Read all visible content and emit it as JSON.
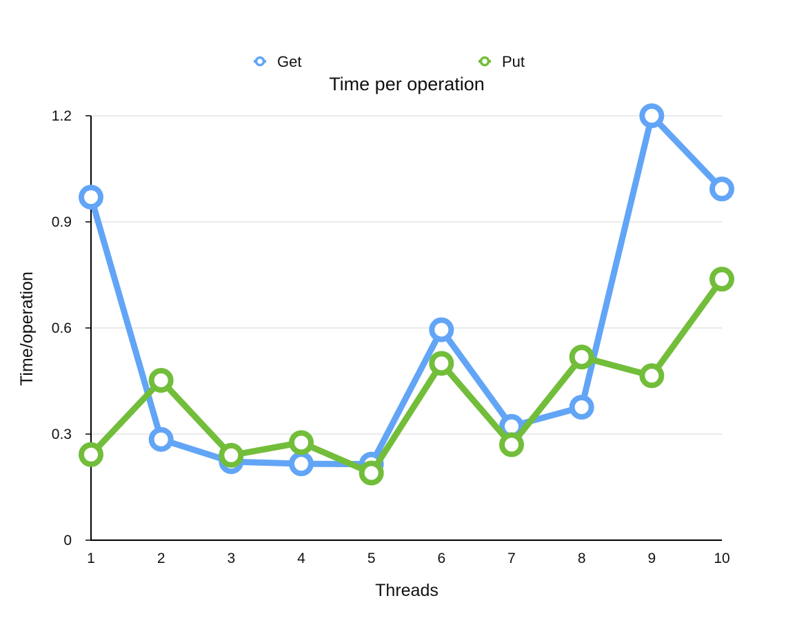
{
  "chart_data": {
    "type": "line",
    "title": "Time per operation",
    "xlabel": "Threads",
    "ylabel": "Time/operation",
    "x": [
      "1",
      "2",
      "3",
      "4",
      "5",
      "6",
      "7",
      "8",
      "9",
      "10"
    ],
    "y_ticks": [
      "0",
      "0.3",
      "0.6",
      "0.9",
      "1.2"
    ],
    "ylim": [
      0,
      1.2
    ],
    "grid": true,
    "legend": "top",
    "series": [
      {
        "name": "Get",
        "color": "#62a5f6",
        "values": [
          0.97,
          0.285,
          0.222,
          0.216,
          0.215,
          0.595,
          0.322,
          0.376,
          1.2,
          0.993
        ]
      },
      {
        "name": "Put",
        "color": "#72bd3a",
        "values": [
          0.242,
          0.452,
          0.24,
          0.276,
          0.19,
          0.5,
          0.27,
          0.518,
          0.465,
          0.738
        ]
      }
    ]
  }
}
